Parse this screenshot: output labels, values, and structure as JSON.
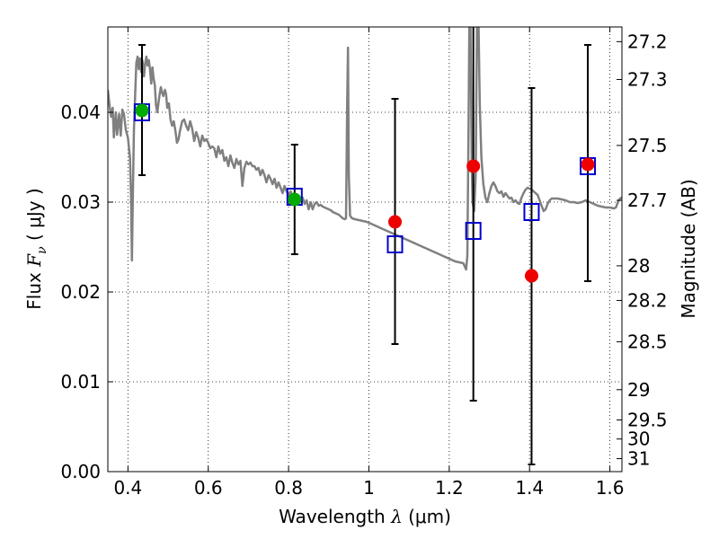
{
  "chart_data": {
    "type": "scatter",
    "title": "",
    "xlabel_prefix": "Wavelength ",
    "xlabel_symbol": "λ",
    "xlabel_units": " (μm)",
    "ylabel_prefix": "Flux ",
    "ylabel_symbol": "F",
    "ylabel_sub": "ν",
    "ylabel_units": " ( μJy )",
    "y2label": "Magnitude (AB)",
    "xlim": [
      0.35,
      1.63
    ],
    "ylim": [
      0.0,
      0.0495
    ],
    "grid": true,
    "x_ticks": [
      {
        "value": 0.4,
        "label": "0.4"
      },
      {
        "value": 0.6,
        "label": "0.6"
      },
      {
        "value": 0.8,
        "label": "0.8"
      },
      {
        "value": 1.0,
        "label": "1"
      },
      {
        "value": 1.2,
        "label": "1.2"
      },
      {
        "value": 1.4,
        "label": "1.4"
      },
      {
        "value": 1.6,
        "label": "1.6"
      }
    ],
    "y_ticks": [
      {
        "value": 0.0,
        "label": "0.00"
      },
      {
        "value": 0.01,
        "label": "0.01"
      },
      {
        "value": 0.02,
        "label": "0.02"
      },
      {
        "value": 0.03,
        "label": "0.03"
      },
      {
        "value": 0.04,
        "label": "0.04"
      }
    ],
    "mag_ticks": [
      {
        "value": 27.2,
        "label": "27.2"
      },
      {
        "value": 27.3,
        "label": "27.3"
      },
      {
        "value": 27.5,
        "label": "27.5"
      },
      {
        "value": 27.7,
        "label": "27.7"
      },
      {
        "value": 28,
        "label": "28"
      },
      {
        "value": 28.2,
        "label": "28.2"
      },
      {
        "value": 28.5,
        "label": "28.5"
      },
      {
        "value": 29,
        "label": "29"
      },
      {
        "value": 29.5,
        "label": "29.5"
      },
      {
        "value": 30,
        "label": "30"
      },
      {
        "value": 31,
        "label": "31"
      }
    ],
    "mag_zero_point": 23.9,
    "series": [
      {
        "kind": "line",
        "color": "#808080",
        "points": [
          [
            0.35,
            0.0425
          ],
          [
            0.355,
            0.0405
          ],
          [
            0.358,
            0.0395
          ],
          [
            0.362,
            0.0405
          ],
          [
            0.365,
            0.0372
          ],
          [
            0.37,
            0.04
          ],
          [
            0.373,
            0.0375
          ],
          [
            0.378,
            0.0398
          ],
          [
            0.382,
            0.0374
          ],
          [
            0.386,
            0.0403
          ],
          [
            0.39,
            0.0398
          ],
          [
            0.395,
            0.038
          ],
          [
            0.4,
            0.0372
          ],
          [
            0.405,
            0.035
          ],
          [
            0.408,
            0.0302
          ],
          [
            0.41,
            0.0235
          ],
          [
            0.412,
            0.03
          ],
          [
            0.415,
            0.038
          ],
          [
            0.418,
            0.042
          ],
          [
            0.421,
            0.0455
          ],
          [
            0.424,
            0.0462
          ],
          [
            0.427,
            0.0448
          ],
          [
            0.43,
            0.046
          ],
          [
            0.433,
            0.0445
          ],
          [
            0.436,
            0.0458
          ],
          [
            0.44,
            0.044
          ],
          [
            0.443,
            0.0455
          ],
          [
            0.446,
            0.0462
          ],
          [
            0.449,
            0.0452
          ],
          [
            0.452,
            0.0458
          ],
          [
            0.455,
            0.0448
          ],
          [
            0.458,
            0.0432
          ],
          [
            0.461,
            0.045
          ],
          [
            0.464,
            0.0438
          ],
          [
            0.467,
            0.043
          ],
          [
            0.47,
            0.0408
          ],
          [
            0.473,
            0.04
          ],
          [
            0.476,
            0.041
          ],
          [
            0.479,
            0.042
          ],
          [
            0.482,
            0.0428
          ],
          [
            0.485,
            0.0422
          ],
          [
            0.488,
            0.0418
          ],
          [
            0.492,
            0.0425
          ],
          [
            0.495,
            0.042
          ],
          [
            0.498,
            0.0405
          ],
          [
            0.502,
            0.041
          ],
          [
            0.506,
            0.0392
          ],
          [
            0.51,
            0.0385
          ],
          [
            0.514,
            0.039
          ],
          [
            0.518,
            0.038
          ],
          [
            0.522,
            0.0366
          ],
          [
            0.526,
            0.037
          ],
          [
            0.53,
            0.038
          ],
          [
            0.535,
            0.039
          ],
          [
            0.54,
            0.0392
          ],
          [
            0.545,
            0.0385
          ],
          [
            0.55,
            0.038
          ],
          [
            0.555,
            0.039
          ],
          [
            0.56,
            0.0382
          ],
          [
            0.565,
            0.0368
          ],
          [
            0.57,
            0.0378
          ],
          [
            0.575,
            0.0372
          ],
          [
            0.58,
            0.0362
          ],
          [
            0.585,
            0.0374
          ],
          [
            0.59,
            0.0368
          ],
          [
            0.595,
            0.037
          ],
          [
            0.6,
            0.0366
          ],
          [
            0.605,
            0.036
          ],
          [
            0.61,
            0.0362
          ],
          [
            0.615,
            0.036
          ],
          [
            0.62,
            0.035
          ],
          [
            0.625,
            0.0362
          ],
          [
            0.63,
            0.0354
          ],
          [
            0.635,
            0.0358
          ],
          [
            0.64,
            0.0346
          ],
          [
            0.645,
            0.035
          ],
          [
            0.65,
            0.034
          ],
          [
            0.655,
            0.0352
          ],
          [
            0.66,
            0.0344
          ],
          [
            0.665,
            0.0338
          ],
          [
            0.67,
            0.0348
          ],
          [
            0.675,
            0.0342
          ],
          [
            0.68,
            0.0346
          ],
          [
            0.685,
            0.0318
          ],
          [
            0.69,
            0.0338
          ],
          [
            0.695,
            0.0345
          ],
          [
            0.7,
            0.0342
          ],
          [
            0.705,
            0.0344
          ],
          [
            0.71,
            0.034
          ],
          [
            0.715,
            0.034
          ],
          [
            0.72,
            0.0336
          ],
          [
            0.725,
            0.0338
          ],
          [
            0.73,
            0.033
          ],
          [
            0.735,
            0.0336
          ],
          [
            0.74,
            0.033
          ],
          [
            0.745,
            0.0322
          ],
          [
            0.75,
            0.033
          ],
          [
            0.755,
            0.0326
          ],
          [
            0.76,
            0.032
          ],
          [
            0.765,
            0.0326
          ],
          [
            0.77,
            0.0316
          ],
          [
            0.775,
            0.0322
          ],
          [
            0.78,
            0.0316
          ],
          [
            0.785,
            0.031
          ],
          [
            0.79,
            0.0318
          ],
          [
            0.795,
            0.0312
          ],
          [
            0.8,
            0.0308
          ],
          [
            0.805,
            0.0312
          ],
          [
            0.81,
            0.0306
          ],
          [
            0.815,
            0.031
          ],
          [
            0.82,
            0.0302
          ],
          [
            0.825,
            0.0306
          ],
          [
            0.83,
            0.0304
          ],
          [
            0.835,
            0.0305
          ],
          [
            0.84,
            0.0298
          ],
          [
            0.845,
            0.0302
          ],
          [
            0.85,
            0.0292
          ],
          [
            0.855,
            0.03
          ],
          [
            0.86,
            0.0292
          ],
          [
            0.865,
            0.0298
          ],
          [
            0.87,
            0.03
          ],
          [
            0.875,
            0.0296
          ],
          [
            0.88,
            0.0297
          ],
          [
            0.885,
            0.0295
          ],
          [
            0.89,
            0.0294
          ],
          [
            0.895,
            0.0293
          ],
          [
            0.9,
            0.0292
          ],
          [
            0.905,
            0.0291
          ],
          [
            0.91,
            0.0289
          ],
          [
            0.915,
            0.0288
          ],
          [
            0.92,
            0.0287
          ],
          [
            0.925,
            0.0286
          ],
          [
            0.93,
            0.0284
          ],
          [
            0.935,
            0.0282
          ],
          [
            0.94,
            0.0281
          ],
          [
            0.943,
            0.0282
          ],
          [
            0.946,
            0.041
          ],
          [
            0.948,
            0.0472
          ],
          [
            0.95,
            0.033
          ],
          [
            0.953,
            0.0285
          ],
          [
            0.958,
            0.0282
          ],
          [
            0.965,
            0.0281
          ],
          [
            0.975,
            0.028
          ],
          [
            0.985,
            0.0279
          ],
          [
            0.995,
            0.0278
          ],
          [
            1.005,
            0.0276
          ],
          [
            1.015,
            0.0274
          ],
          [
            1.025,
            0.0272
          ],
          [
            1.035,
            0.027
          ],
          [
            1.045,
            0.0268
          ],
          [
            1.055,
            0.0266
          ],
          [
            1.065,
            0.0264
          ],
          [
            1.075,
            0.0262
          ],
          [
            1.085,
            0.026
          ],
          [
            1.095,
            0.0258
          ],
          [
            1.105,
            0.0256
          ],
          [
            1.115,
            0.0254
          ],
          [
            1.125,
            0.0252
          ],
          [
            1.135,
            0.025
          ],
          [
            1.145,
            0.0248
          ],
          [
            1.155,
            0.0246
          ],
          [
            1.165,
            0.0244
          ],
          [
            1.175,
            0.0242
          ],
          [
            1.185,
            0.024
          ],
          [
            1.195,
            0.0238
          ],
          [
            1.205,
            0.0236
          ],
          [
            1.215,
            0.0234
          ],
          [
            1.225,
            0.0233
          ],
          [
            1.235,
            0.0232
          ],
          [
            1.242,
            0.0225
          ],
          [
            1.245,
            0.024
          ],
          [
            1.248,
            0.038
          ],
          [
            1.25,
            0.0495
          ],
          [
            1.253,
            0.0495
          ],
          [
            1.256,
            0.0345
          ],
          [
            1.258,
            0.03
          ],
          [
            1.262,
            0.029
          ],
          [
            1.266,
            0.033
          ],
          [
            1.269,
            0.0495
          ],
          [
            1.273,
            0.0495
          ],
          [
            1.276,
            0.041
          ],
          [
            1.28,
            0.035
          ],
          [
            1.285,
            0.032
          ],
          [
            1.29,
            0.0305
          ],
          [
            1.295,
            0.03
          ],
          [
            1.3,
            0.031
          ],
          [
            1.305,
            0.0318
          ],
          [
            1.31,
            0.0322
          ],
          [
            1.315,
            0.0318
          ],
          [
            1.32,
            0.0312
          ],
          [
            1.325,
            0.031
          ],
          [
            1.33,
            0.0312
          ],
          [
            1.335,
            0.0306
          ],
          [
            1.34,
            0.031
          ],
          [
            1.345,
            0.0307
          ],
          [
            1.35,
            0.0304
          ],
          [
            1.355,
            0.0305
          ],
          [
            1.36,
            0.03
          ],
          [
            1.365,
            0.0302
          ],
          [
            1.37,
            0.0299
          ],
          [
            1.375,
            0.0298
          ],
          [
            1.38,
            0.0305
          ],
          [
            1.385,
            0.031
          ],
          [
            1.39,
            0.0314
          ],
          [
            1.395,
            0.0316
          ],
          [
            1.4,
            0.0315
          ],
          [
            1.405,
            0.0314
          ],
          [
            1.41,
            0.0312
          ],
          [
            1.415,
            0.031
          ],
          [
            1.42,
            0.0308
          ],
          [
            1.425,
            0.0302
          ],
          [
            1.43,
            0.0296
          ],
          [
            1.435,
            0.029
          ],
          [
            1.44,
            0.0292
          ],
          [
            1.445,
            0.0298
          ],
          [
            1.45,
            0.0302
          ],
          [
            1.455,
            0.0304
          ],
          [
            1.46,
            0.0304
          ],
          [
            1.47,
            0.0304
          ],
          [
            1.48,
            0.0303
          ],
          [
            1.49,
            0.0302
          ],
          [
            1.5,
            0.03
          ],
          [
            1.51,
            0.03
          ],
          [
            1.52,
            0.0299
          ],
          [
            1.53,
            0.03
          ],
          [
            1.54,
            0.0302
          ],
          [
            1.55,
            0.03
          ],
          [
            1.56,
            0.0298
          ],
          [
            1.57,
            0.0296
          ],
          [
            1.58,
            0.0295
          ],
          [
            1.59,
            0.0294
          ],
          [
            1.6,
            0.0294
          ],
          [
            1.61,
            0.0293
          ],
          [
            1.615,
            0.0294
          ],
          [
            1.62,
            0.03
          ],
          [
            1.625,
            0.0304
          ],
          [
            1.63,
            0.0305
          ]
        ]
      },
      {
        "kind": "errorbar",
        "color": "#000000",
        "points": [
          {
            "x": 0.435,
            "y": 0.0403,
            "lo": 0.033,
            "hi": 0.0475
          },
          {
            "x": 0.815,
            "y": 0.0303,
            "lo": 0.0242,
            "hi": 0.0364
          },
          {
            "x": 1.065,
            "y": 0.0278,
            "lo": 0.0142,
            "hi": 0.0415
          },
          {
            "x": 1.26,
            "y": 0.034,
            "lo": 0.0079,
            "hi": 0.0498
          },
          {
            "x": 1.405,
            "y": 0.0218,
            "lo": 0.0008,
            "hi": 0.0427
          },
          {
            "x": 1.545,
            "y": 0.0342,
            "lo": 0.0212,
            "hi": 0.0475
          }
        ]
      },
      {
        "kind": "square",
        "color": "#0000cc",
        "points": [
          {
            "x": 0.435,
            "y": 0.04
          },
          {
            "x": 0.815,
            "y": 0.0306
          },
          {
            "x": 1.065,
            "y": 0.0253
          },
          {
            "x": 1.26,
            "y": 0.0268
          },
          {
            "x": 1.405,
            "y": 0.0289
          },
          {
            "x": 1.545,
            "y": 0.034
          }
        ]
      },
      {
        "kind": "circle",
        "color": "#00aa00",
        "points": [
          {
            "x": 0.435,
            "y": 0.0402
          },
          {
            "x": 0.815,
            "y": 0.0303
          }
        ]
      },
      {
        "kind": "circle",
        "color": "#ee0000",
        "points": [
          {
            "x": 1.065,
            "y": 0.0278
          },
          {
            "x": 1.26,
            "y": 0.034
          },
          {
            "x": 1.405,
            "y": 0.0218
          },
          {
            "x": 1.545,
            "y": 0.0342
          }
        ]
      }
    ]
  }
}
